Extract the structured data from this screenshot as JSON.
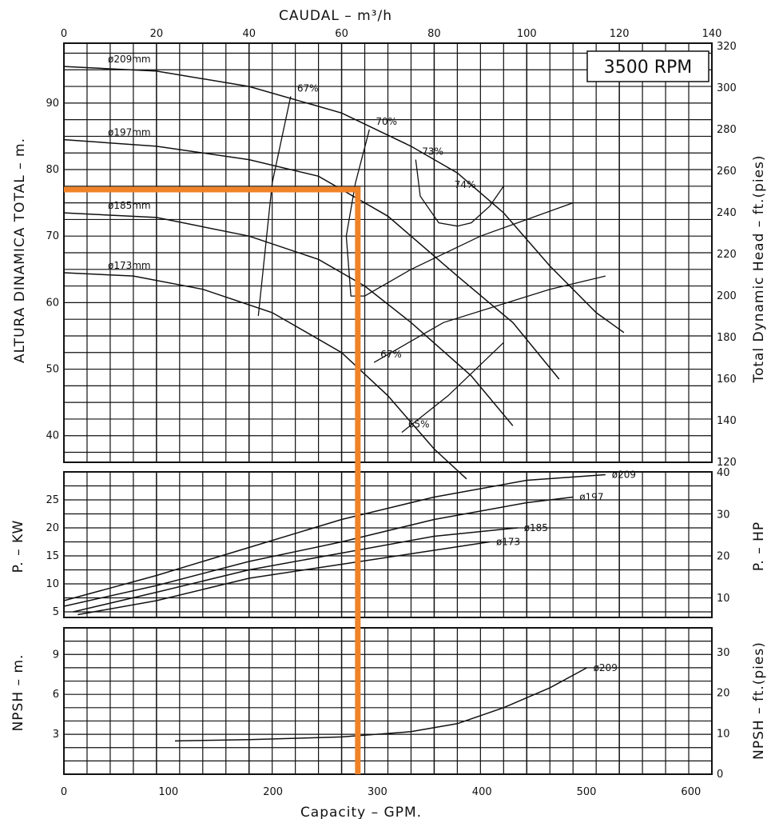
{
  "chart_data": {
    "type": "line",
    "title": "3500 RPM",
    "top_axis": {
      "label": "CAUDAL  –  m³/h",
      "range": [
        0,
        140
      ],
      "ticks": [
        "0",
        "20",
        "40",
        "60",
        "80",
        "100",
        "120",
        "140"
      ]
    },
    "bottom_axis": {
      "label": "Capacity  –  GPM.",
      "range": [
        0,
        620
      ],
      "ticks": [
        "0",
        "100",
        "200",
        "300",
        "400",
        "500",
        "600"
      ]
    },
    "panels": [
      {
        "id": "head",
        "ylabel_left": "ALTURA DINAMICA TOTAL  –  m.",
        "ylabel_right": "Total Dynamic Head  –  ft.(pies)",
        "yrange_left": [
          36,
          99
        ],
        "left_ticks": [
          40,
          50,
          60,
          70,
          80,
          90
        ],
        "right_ticks": [
          120,
          140,
          160,
          180,
          200,
          220,
          240,
          260,
          280,
          300,
          320
        ],
        "series": [
          {
            "name": "ø209mm",
            "points": [
              [
                0,
                95.5
              ],
              [
                20,
                94.8
              ],
              [
                40,
                92.5
              ],
              [
                60,
                88.5
              ],
              [
                75,
                83.5
              ],
              [
                85,
                79.5
              ],
              [
                95,
                73.5
              ],
              [
                105,
                65.5
              ],
              [
                115,
                58.5
              ],
              [
                121,
                55.5
              ]
            ]
          },
          {
            "name": "ø197mm",
            "points": [
              [
                0,
                84.5
              ],
              [
                20,
                83.5
              ],
              [
                40,
                81.5
              ],
              [
                55,
                79
              ],
              [
                70,
                73
              ],
              [
                85,
                64
              ],
              [
                97,
                57
              ],
              [
                107,
                48.5
              ]
            ]
          },
          {
            "name": "ø185mm",
            "points": [
              [
                0,
                73.5
              ],
              [
                20,
                72.8
              ],
              [
                40,
                70
              ],
              [
                55,
                66.5
              ],
              [
                65,
                62.5
              ],
              [
                75,
                57
              ],
              [
                88,
                49
              ],
              [
                97,
                41.5
              ]
            ]
          },
          {
            "name": "ø173mm",
            "points": [
              [
                0,
                64.5
              ],
              [
                15,
                64
              ],
              [
                30,
                62
              ],
              [
                45,
                58.5
              ],
              [
                60,
                52.5
              ],
              [
                70,
                46
              ],
              [
                80,
                38
              ],
              [
                87,
                33.5
              ]
            ]
          }
        ],
        "efficiency": [
          {
            "label": "67%",
            "points": [
              [
                49,
                91
              ],
              [
                45,
                78
              ],
              [
                42,
                58
              ]
            ]
          },
          {
            "label": "70%",
            "points": [
              [
                66,
                86
              ],
              [
                63,
                78
              ],
              [
                61,
                70
              ],
              [
                62,
                61
              ],
              [
                65,
                61
              ],
              [
                75,
                65
              ],
              [
                90,
                70
              ],
              [
                110,
                75
              ]
            ]
          },
          {
            "label": "73%",
            "points": [
              [
                76,
                81.5
              ],
              [
                77,
                76
              ],
              [
                81,
                72
              ],
              [
                85,
                71.5
              ],
              [
                88,
                72
              ],
              [
                92,
                74.5
              ],
              [
                95,
                77.5
              ]
            ]
          },
          {
            "label": "74%",
            "points": [
              [
                83,
                76.5
              ]
            ]
          },
          {
            "label": "65%",
            "points": [
              [
                73,
                40.5
              ],
              [
                83,
                46
              ],
              [
                95,
                54
              ]
            ]
          },
          {
            "label": "67%",
            "points": [
              [
                67,
                51
              ],
              [
                82,
                57
              ],
              [
                105,
                62
              ],
              [
                117,
                64
              ]
            ]
          }
        ]
      },
      {
        "id": "power",
        "ylabel_left": "P.  –  KW",
        "ylabel_right": "P.  –  HP",
        "yrange_left": [
          4,
          30
        ],
        "left_ticks": [
          5,
          10,
          15,
          20,
          25
        ],
        "right_ticks": [
          10,
          20,
          30,
          40
        ],
        "series": [
          {
            "name": "ø209",
            "points": [
              [
                0,
                7
              ],
              [
                20,
                11.5
              ],
              [
                40,
                16.5
              ],
              [
                60,
                21.5
              ],
              [
                80,
                25.5
              ],
              [
                100,
                28.5
              ],
              [
                117,
                29.5
              ]
            ]
          },
          {
            "name": "ø197",
            "points": [
              [
                0,
                6
              ],
              [
                20,
                9.7
              ],
              [
                40,
                14
              ],
              [
                60,
                17.5
              ],
              [
                80,
                21.5
              ],
              [
                100,
                24.5
              ],
              [
                110,
                25.5
              ]
            ]
          },
          {
            "name": "ø185",
            "points": [
              [
                2,
                5
              ],
              [
                20,
                8.5
              ],
              [
                40,
                12.5
              ],
              [
                60,
                15.5
              ],
              [
                80,
                18.5
              ],
              [
                98,
                20
              ]
            ]
          },
          {
            "name": "ø173",
            "points": [
              [
                3,
                4.5
              ],
              [
                20,
                7
              ],
              [
                40,
                11
              ],
              [
                60,
                13.5
              ],
              [
                80,
                16
              ],
              [
                92,
                17.5
              ]
            ]
          }
        ]
      },
      {
        "id": "npsh",
        "ylabel_left": "NPSH  –  m.",
        "ylabel_right": "NPSH  –  ft.(pies)",
        "yrange_left": [
          0,
          11
        ],
        "left_ticks": [
          3,
          6,
          9
        ],
        "right_ticks": [
          0,
          10,
          20,
          30
        ],
        "series": [
          {
            "name": "ø209",
            "points": [
              [
                24,
                2.5
              ],
              [
                40,
                2.6
              ],
              [
                60,
                2.8
              ],
              [
                75,
                3.2
              ],
              [
                85,
                3.8
              ],
              [
                95,
                5
              ],
              [
                105,
                6.5
              ],
              [
                113,
                8
              ]
            ]
          }
        ]
      }
    ],
    "operating_point": {
      "flow_m3h": 63.5,
      "head_m": 77
    },
    "accent_color": "#f08228"
  }
}
